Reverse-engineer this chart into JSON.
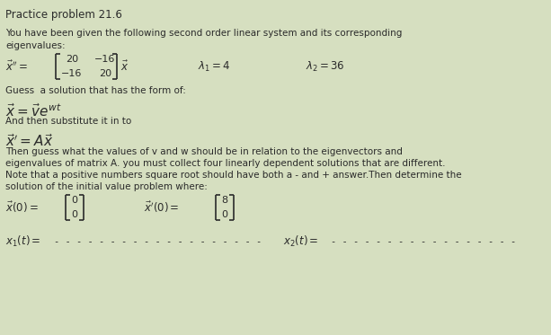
{
  "title": "Practice problem 21.6",
  "bg_color": "#d6dfc0",
  "text_color": "#2a2a2a",
  "body_line1": "You have been given the following second order linear system and its corresponding",
  "body_line2": "eigenvalues:",
  "guess_label": "Guess  a solution that has the form of:",
  "substitute_label": "And then substitute it in to",
  "then_label1": "Then guess what the values of v and w should be in relation to the eigenvectors and",
  "then_label2": "eigenvalues of matrix A. you must collect four linearly dependent solutions that are different.",
  "then_label3": "Note that a positive numbers square root should have both a - and + answer.Then determine the",
  "then_label4": "solution of the initial value problem where:",
  "lambda1": 4,
  "lambda2": 36,
  "dashes1": "- - - - - - - - - - - - - - - - - - -",
  "dashes2": "- - - - - - - - - - - - - - - - -",
  "fs_title": 8.5,
  "fs_body": 7.5,
  "fs_math": 8.5,
  "fs_matrix": 8.0
}
